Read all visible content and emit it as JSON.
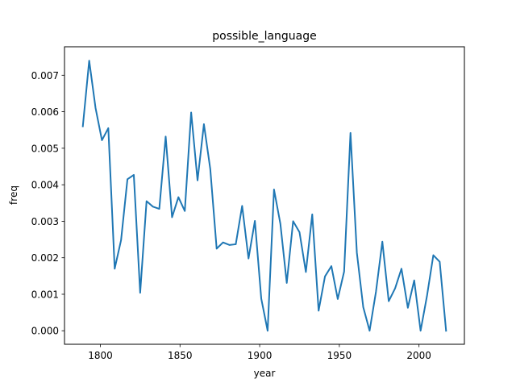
{
  "chart_data": {
    "type": "line",
    "title": "possible_language",
    "xlabel": "year",
    "ylabel": "freq",
    "xlim": [
      1777.5,
      2028.5
    ],
    "ylim": [
      -0.00037,
      0.00778
    ],
    "xticks": [
      1800,
      1850,
      1900,
      1950,
      2000
    ],
    "xtick_labels": [
      "1800",
      "1850",
      "1900",
      "1950",
      "2000"
    ],
    "yticks": [
      0.0,
      0.001,
      0.002,
      0.003,
      0.004,
      0.005,
      0.006,
      0.007
    ],
    "ytick_labels": [
      "0.000",
      "0.001",
      "0.002",
      "0.003",
      "0.004",
      "0.005",
      "0.006",
      "0.007"
    ],
    "grid": false,
    "series": [
      {
        "color": "#1f77b4",
        "x": [
          1789,
          1793,
          1797,
          1801,
          1805,
          1809,
          1813,
          1817,
          1821,
          1825,
          1829,
          1833,
          1837,
          1841,
          1845,
          1849,
          1853,
          1857,
          1861,
          1865,
          1869,
          1873,
          1877,
          1881,
          1885,
          1889,
          1893,
          1897,
          1901,
          1905,
          1909,
          1913,
          1917,
          1921,
          1925,
          1929,
          1933,
          1937,
          1941,
          1945,
          1949,
          1953,
          1957,
          1961,
          1965,
          1969,
          1973,
          1977,
          1981,
          1985,
          1989,
          1993,
          1997,
          2001,
          2005,
          2009,
          2013,
          2017
        ],
        "y": [
          0.0056,
          0.0074,
          0.0061,
          0.00522,
          0.00555,
          0.0017,
          0.00248,
          0.00415,
          0.00427,
          0.00104,
          0.00355,
          0.0034,
          0.00334,
          0.00532,
          0.00311,
          0.00366,
          0.00328,
          0.00598,
          0.00412,
          0.00566,
          0.00443,
          0.00225,
          0.00242,
          0.00235,
          0.00237,
          0.00342,
          0.00198,
          0.00301,
          0.00088,
          0.0,
          0.00387,
          0.00293,
          0.00131,
          0.003,
          0.0027,
          0.00161,
          0.00319,
          0.00055,
          0.00149,
          0.00177,
          0.00087,
          0.00162,
          0.00542,
          0.00214,
          0.00065,
          0.0,
          0.00107,
          0.00244,
          0.00081,
          0.00116,
          0.0017,
          0.00063,
          0.00138,
          0.0,
          0.00095,
          0.00207,
          0.00189,
          0.0
        ]
      }
    ]
  }
}
